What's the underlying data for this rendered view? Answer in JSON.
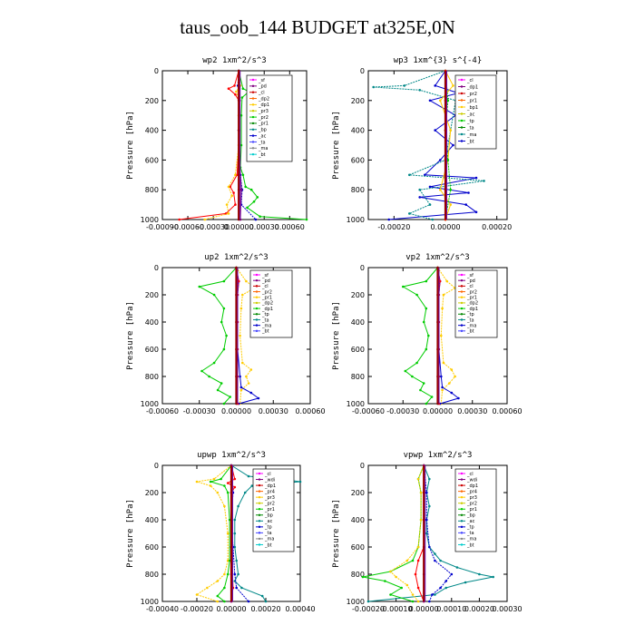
{
  "title": "taus_oob_144  BUDGET at325E,0N",
  "chart_data": [
    {
      "type": "line",
      "title": "wp2   1xm^2/s^3",
      "ylabel": "Pressure [hPa]",
      "xlim": [
        -0.0009,
        0.0008
      ],
      "ylim": [
        1000,
        0
      ],
      "xticks": [
        "-0.00090",
        "-0.00060",
        "-0.00030",
        "0.00000",
        "0.00030",
        "0.00060"
      ],
      "yticks": [
        "0",
        "200",
        "400",
        "600",
        "800",
        "1000"
      ],
      "legend": [
        "_sf",
        "_pd",
        "_cl",
        "_dp2",
        "_dp1",
        "_pr3",
        "_pr2",
        "_pr1",
        "_bp",
        "_ac",
        "_ta",
        "_ma",
        "_bt"
      ],
      "series": [
        {
          "color": "#ff0000",
          "p": [
            0,
            100,
            120,
            160,
            200,
            300,
            500,
            700,
            780,
            820,
            900,
            960,
            1000
          ],
          "v": [
            0,
            -5e-05,
            -0.00012,
            -4e-05,
            0,
            0,
            0,
            -2e-05,
            -0.0001,
            -6e-05,
            -4e-05,
            -0.00015,
            -0.0007
          ]
        },
        {
          "color": "#ffcc00",
          "p": [
            0,
            100,
            140,
            200,
            300,
            500,
            700,
            780,
            840,
            900,
            960,
            1000
          ],
          "v": [
            0,
            2e-05,
            -3e-05,
            1e-05,
            0,
            0,
            -4e-05,
            -0.00012,
            -8e-05,
            -0.00014,
            -0.00012,
            -0.0004
          ]
        },
        {
          "color": "#00cc00",
          "p": [
            0,
            120,
            140,
            180,
            300,
            500,
            650,
            700,
            780,
            800,
            850,
            880,
            920,
            980,
            1000
          ],
          "v": [
            0,
            5e-05,
            0.00012,
            4e-05,
            3e-05,
            3e-05,
            2e-05,
            5e-05,
            8e-05,
            0.00015,
            0.00022,
            0.00018,
            0.0001,
            0.00025,
            0.0008
          ]
        },
        {
          "color": "#0000cc",
          "p": [
            0,
            100,
            200,
            400,
            600,
            700,
            800,
            900,
            1000
          ],
          "v": [
            0,
            -1e-05,
            1e-05,
            0,
            0,
            2e-05,
            4e-05,
            3e-05,
            0.0002
          ]
        },
        {
          "color": "#800080",
          "p": [
            0,
            200,
            400,
            600,
            800,
            1000
          ],
          "v": [
            0,
            1e-05,
            0,
            1e-05,
            3e-05,
            2e-05
          ]
        },
        {
          "color": "#800000",
          "p": [
            0,
            200,
            400,
            600,
            800,
            1000
          ],
          "v": [
            0,
            0,
            0,
            0,
            0,
            0
          ]
        }
      ]
    },
    {
      "type": "line",
      "title": "wp3   1xm^{3} s^{-4}",
      "ylabel": "Pressure [hPa]",
      "xlim": [
        -0.0003,
        0.00024
      ],
      "ylim": [
        1000,
        0
      ],
      "xticks": [
        "-0.00020",
        "0.00000",
        "0.00020"
      ],
      "yticks": [
        "0",
        "200",
        "400",
        "600",
        "800",
        "1000"
      ],
      "legend": [
        "_cl",
        "_dp1",
        "_pr2",
        "_pr1",
        "_bp1",
        "_ac",
        "_tp",
        "_ta",
        "_ma",
        "_bt"
      ],
      "series": [
        {
          "color": "#0000cc",
          "p": [
            0,
            100,
            150,
            200,
            300,
            400,
            500,
            600,
            700,
            720,
            780,
            820,
            850,
            900,
            950,
            1000
          ],
          "v": [
            0,
            -4e-05,
            5e-05,
            -6e-05,
            4e-05,
            -4e-05,
            3e-05,
            -2e-05,
            -8e-05,
            0.00012,
            -6e-05,
            9e-05,
            -0.0001,
            8e-05,
            0.00012,
            -0.00022
          ]
        },
        {
          "color": "#008888",
          "p": [
            0,
            100,
            110,
            130,
            200,
            400,
            600,
            700,
            740,
            800,
            900,
            960,
            1000
          ],
          "v": [
            0,
            -0.00016,
            -0.00028,
            -0.0001,
            4e-05,
            2e-05,
            0,
            -0.00014,
            0.00015,
            -0.0001,
            -6e-05,
            -0.00014,
            -5e-05
          ]
        },
        {
          "color": "#ffcc00",
          "p": [
            0,
            100,
            200,
            400,
            600,
            800,
            900,
            1000
          ],
          "v": [
            0,
            3e-05,
            -2e-05,
            2e-05,
            1e-05,
            -2e-05,
            2e-05,
            0
          ]
        },
        {
          "color": "#00cc00",
          "p": [
            0,
            200,
            400,
            600,
            800,
            1000
          ],
          "v": [
            0,
            1e-05,
            0,
            1e-05,
            2e-05,
            0
          ]
        },
        {
          "color": "#ff0000",
          "p": [
            0,
            200,
            400,
            600,
            800,
            1000
          ],
          "v": [
            0,
            0,
            0,
            0,
            0,
            0
          ]
        }
      ]
    },
    {
      "type": "line",
      "title": "up2   1xm^2/s^3",
      "ylabel": "Pressure [hPa]",
      "xlim": [
        -0.0006,
        0.0006
      ],
      "ylim": [
        1000,
        0
      ],
      "xticks": [
        "-0.00060",
        "-0.00030",
        "0.00000",
        "0.00030",
        "0.00060"
      ],
      "yticks": [
        "0",
        "200",
        "400",
        "600",
        "800",
        "1000"
      ],
      "legend": [
        "_sf",
        "_pd",
        "_cl",
        "_pr2",
        "_pr1",
        "_dp2",
        "_dp1",
        "_tp",
        "_ta",
        "_ma",
        "_bt"
      ],
      "series": [
        {
          "color": "#00cc00",
          "p": [
            0,
            100,
            140,
            200,
            300,
            400,
            500,
            600,
            700,
            760,
            800,
            850,
            900,
            950,
            1000
          ],
          "v": [
            0,
            -0.0001,
            -0.0003,
            -0.00018,
            -0.0001,
            -0.00012,
            -8e-05,
            -0.0001,
            -0.00018,
            -0.00028,
            -0.00022,
            -0.00012,
            -0.00015,
            -5e-05,
            -0.0001
          ]
        },
        {
          "color": "#ffcc00",
          "p": [
            0,
            100,
            150,
            200,
            300,
            500,
            700,
            750,
            800,
            850,
            900,
            1000
          ],
          "v": [
            0,
            8e-05,
            0.00015,
            5e-05,
            4e-05,
            3e-05,
            5e-05,
            0.00012,
            8e-05,
            0.0001,
            4e-05,
            3e-05
          ]
        },
        {
          "color": "#0000cc",
          "p": [
            0,
            100,
            200,
            400,
            600,
            800,
            880,
            920,
            960,
            1000
          ],
          "v": [
            0,
            2e-05,
            1e-05,
            1e-05,
            1e-05,
            3e-05,
            4e-05,
            0.00012,
            0.00018,
            2e-05
          ]
        },
        {
          "color": "#ff0000",
          "p": [
            0,
            100,
            200,
            400,
            600,
            800,
            1000
          ],
          "v": [
            0,
            2e-05,
            1e-05,
            1e-05,
            1e-05,
            1e-05,
            1e-05
          ]
        },
        {
          "color": "#800000",
          "p": [
            0,
            200,
            400,
            600,
            800,
            1000
          ],
          "v": [
            0,
            0,
            0,
            0,
            0,
            0
          ]
        }
      ]
    },
    {
      "type": "line",
      "title": "vp2   1xm^2/s^3",
      "ylabel": "Pressure [hPa]",
      "xlim": [
        -0.0006,
        0.0006
      ],
      "ylim": [
        1000,
        0
      ],
      "xticks": [
        "-0.00060",
        "-0.00030",
        "0.00000",
        "0.00030",
        "0.00060"
      ],
      "yticks": [
        "0",
        "200",
        "400",
        "600",
        "800",
        "1000"
      ],
      "legend": [
        "_sf",
        "_pd",
        "_cl",
        "_pr2",
        "_pr1",
        "_dp2",
        "_dp1",
        "_tp",
        "_ta",
        "_ma",
        "_bt"
      ],
      "series": [
        {
          "color": "#00cc00",
          "p": [
            0,
            100,
            140,
            200,
            300,
            400,
            500,
            600,
            700,
            760,
            800,
            850,
            900,
            950,
            1000
          ],
          "v": [
            0,
            -0.0001,
            -0.0003,
            -0.00018,
            -0.0001,
            -0.00012,
            -8e-05,
            -0.0001,
            -0.00018,
            -0.00028,
            -0.00022,
            -0.00012,
            -0.00015,
            -5e-05,
            -0.0001
          ]
        },
        {
          "color": "#ffcc00",
          "p": [
            0,
            100,
            150,
            200,
            300,
            500,
            700,
            750,
            800,
            850,
            900,
            1000
          ],
          "v": [
            0,
            8e-05,
            0.00015,
            5e-05,
            4e-05,
            3e-05,
            5e-05,
            0.00012,
            0.00015,
            0.0001,
            4e-05,
            3e-05
          ]
        },
        {
          "color": "#0000cc",
          "p": [
            0,
            100,
            200,
            400,
            600,
            800,
            880,
            920,
            960,
            1000
          ],
          "v": [
            0,
            2e-05,
            1e-05,
            1e-05,
            1e-05,
            3e-05,
            4e-05,
            0.00012,
            0.00018,
            2e-05
          ]
        },
        {
          "color": "#ff0000",
          "p": [
            0,
            100,
            200,
            400,
            600,
            800,
            1000
          ],
          "v": [
            0,
            2e-05,
            1e-05,
            1e-05,
            1e-05,
            1e-05,
            1e-05
          ]
        },
        {
          "color": "#800000",
          "p": [
            0,
            200,
            400,
            600,
            800,
            1000
          ],
          "v": [
            0,
            0,
            0,
            0,
            0,
            0
          ]
        }
      ]
    },
    {
      "type": "line",
      "title": "upwp   1xm^2/s^3",
      "ylabel": "Pressure [hPa]",
      "xlim": [
        -0.0004,
        0.0004
      ],
      "ylim": [
        1000,
        0
      ],
      "xticks": [
        "-0.00040",
        "-0.00020",
        "0.00000",
        "0.00020",
        "0.00040"
      ],
      "yticks": [
        "0",
        "200",
        "400",
        "600",
        "800",
        "1000"
      ],
      "legend": [
        "_cl",
        "_wdi",
        "_dp1",
        "_pr4",
        "_pr3",
        "_pr2",
        "_pr1",
        "_bp",
        "_ac",
        "_tp",
        "_ta",
        "_ma",
        "_bt"
      ],
      "series": [
        {
          "color": "#008888",
          "p": [
            0,
            80,
            100,
            120,
            150,
            200,
            300,
            400,
            500,
            600,
            700,
            800,
            850,
            900,
            960,
            1000
          ],
          "v": [
            0,
            0.0001,
            0.00028,
            0.0004,
            0.00012,
            8e-05,
            4e-05,
            2e-05,
            2e-05,
            2e-05,
            3e-05,
            4e-05,
            2e-05,
            6e-05,
            0.00018,
            0.0002
          ]
        },
        {
          "color": "#ffcc00",
          "p": [
            0,
            100,
            120,
            150,
            200,
            300,
            500,
            700,
            800,
            850,
            900,
            950,
            1000
          ],
          "v": [
            0,
            -0.0001,
            -0.0002,
            -0.00012,
            -8e-05,
            -4e-05,
            -2e-05,
            -2e-05,
            -4e-05,
            -8e-05,
            -0.00014,
            -0.0002,
            -8e-05
          ]
        },
        {
          "color": "#00cc00",
          "p": [
            0,
            100,
            120,
            150,
            200,
            400,
            700,
            800,
            900,
            960,
            1000
          ],
          "v": [
            0,
            -6e-05,
            -0.00012,
            -4e-05,
            -2e-05,
            -1e-05,
            -1e-05,
            -2e-05,
            -4e-05,
            -8e-05,
            -4e-05
          ]
        },
        {
          "color": "#0000cc",
          "p": [
            0,
            200,
            400,
            600,
            800,
            900,
            1000
          ],
          "v": [
            0,
            1e-05,
            0,
            1e-05,
            2e-05,
            3e-05,
            0.0001
          ]
        },
        {
          "color": "#ff0000",
          "p": [
            0,
            100,
            130,
            160,
            200,
            600,
            900,
            1000
          ],
          "v": [
            0,
            2e-05,
            -2e-05,
            2e-05,
            0,
            0,
            1e-05,
            0
          ]
        },
        {
          "color": "#800080",
          "p": [
            0,
            200,
            400,
            600,
            800,
            1000
          ],
          "v": [
            0,
            0,
            0,
            0,
            0,
            0
          ]
        }
      ]
    },
    {
      "type": "line",
      "title": "vpwp   1xm^2/s^3",
      "ylabel": "Pressure [hPa]",
      "xlim": [
        -0.0002,
        0.0003
      ],
      "ylim": [
        1000,
        0
      ],
      "xticks": [
        "-0.00020",
        "-0.00010",
        "0.00000",
        "0.00010",
        "0.00020",
        "0.00030"
      ],
      "yticks": [
        "0",
        "200",
        "400",
        "600",
        "800",
        "1000"
      ],
      "legend": [
        "_cl",
        "_wdi",
        "_dp1",
        "_pr4",
        "_pr3",
        "_pr2",
        "_pr1",
        "_bp",
        "_ac",
        "_tp",
        "_ta",
        "_ma",
        "_bt"
      ],
      "series": [
        {
          "color": "#008888",
          "p": [
            0,
            100,
            200,
            300,
            400,
            500,
            600,
            650,
            700,
            750,
            800,
            820,
            860,
            900,
            950,
            1000
          ],
          "v": [
            0,
            2e-05,
            1e-05,
            2e-05,
            1e-05,
            1e-05,
            2e-05,
            4e-05,
            6e-05,
            0.00012,
            0.0002,
            0.00025,
            0.00015,
            8e-05,
            4e-05,
            -0.0002
          ]
        },
        {
          "color": "#0000cc",
          "p": [
            0,
            200,
            400,
            600,
            700,
            800,
            850,
            900,
            950,
            1000
          ],
          "v": [
            0,
            1e-05,
            1e-05,
            2e-05,
            4e-05,
            0.0001,
            8e-05,
            6e-05,
            3e-05,
            2e-05
          ]
        },
        {
          "color": "#00cc00",
          "p": [
            0,
            100,
            200,
            400,
            600,
            700,
            780,
            820,
            850,
            900,
            950,
            1000
          ],
          "v": [
            0,
            -2e-05,
            -1e-05,
            -1e-05,
            -2e-05,
            -4e-05,
            -0.00012,
            -0.00022,
            -0.00014,
            -8e-05,
            -0.00012,
            -4e-05
          ]
        },
        {
          "color": "#ffcc00",
          "p": [
            0,
            100,
            200,
            400,
            600,
            700,
            780,
            820,
            880,
            950,
            1000
          ],
          "v": [
            0,
            -2e-05,
            -1e-05,
            -1e-05,
            -2e-05,
            -6e-05,
            -0.00012,
            -0.0001,
            -6e-05,
            -4e-05,
            -2e-05
          ]
        },
        {
          "color": "#ff0000",
          "p": [
            0,
            200,
            600,
            700,
            800,
            900,
            1000
          ],
          "v": [
            0,
            0,
            0,
            -2e-05,
            -3e-05,
            -2e-05,
            0
          ]
        },
        {
          "color": "#800080",
          "p": [
            0,
            200,
            400,
            600,
            800,
            1000
          ],
          "v": [
            0,
            0,
            0,
            0,
            0,
            0
          ]
        }
      ]
    }
  ]
}
